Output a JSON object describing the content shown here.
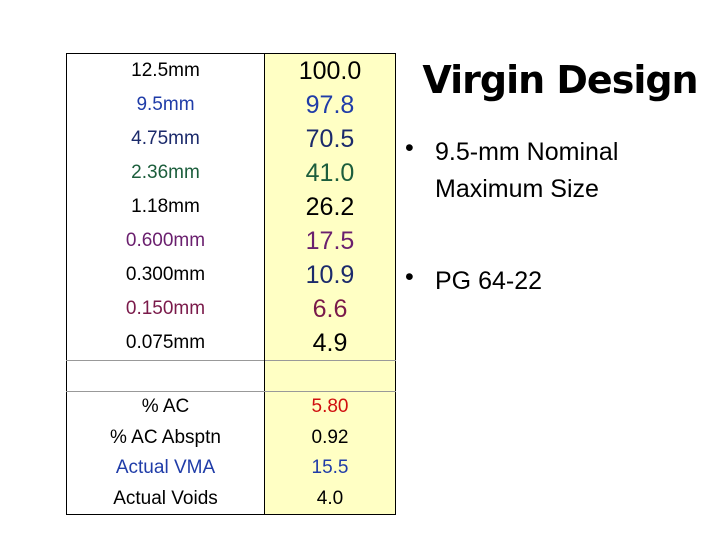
{
  "title": "Virgin Design",
  "bullets": [
    "9.5-mm Nominal Maximum Size",
    "PG 64-22"
  ],
  "table": {
    "sieves": [
      {
        "size": "12.5mm",
        "passing": "100.0"
      },
      {
        "size": "9.5mm",
        "passing": "97.8"
      },
      {
        "size": "4.75mm",
        "passing": "70.5"
      },
      {
        "size": "2.36mm",
        "passing": "41.0"
      },
      {
        "size": "1.18mm",
        "passing": "26.2"
      },
      {
        "size": "0.600mm",
        "passing": "17.5"
      },
      {
        "size": "0.300mm",
        "passing": "10.9"
      },
      {
        "size": "0.150mm",
        "passing": "6.6"
      },
      {
        "size": "0.075mm",
        "passing": "4.9"
      }
    ],
    "properties": [
      {
        "name": "% AC",
        "value": "5.80"
      },
      {
        "name": "% AC Absptn",
        "value": "0.92"
      },
      {
        "name": "Actual VMA",
        "value": "15.5"
      },
      {
        "name": "Actual Voids",
        "value": "4.0"
      }
    ]
  }
}
